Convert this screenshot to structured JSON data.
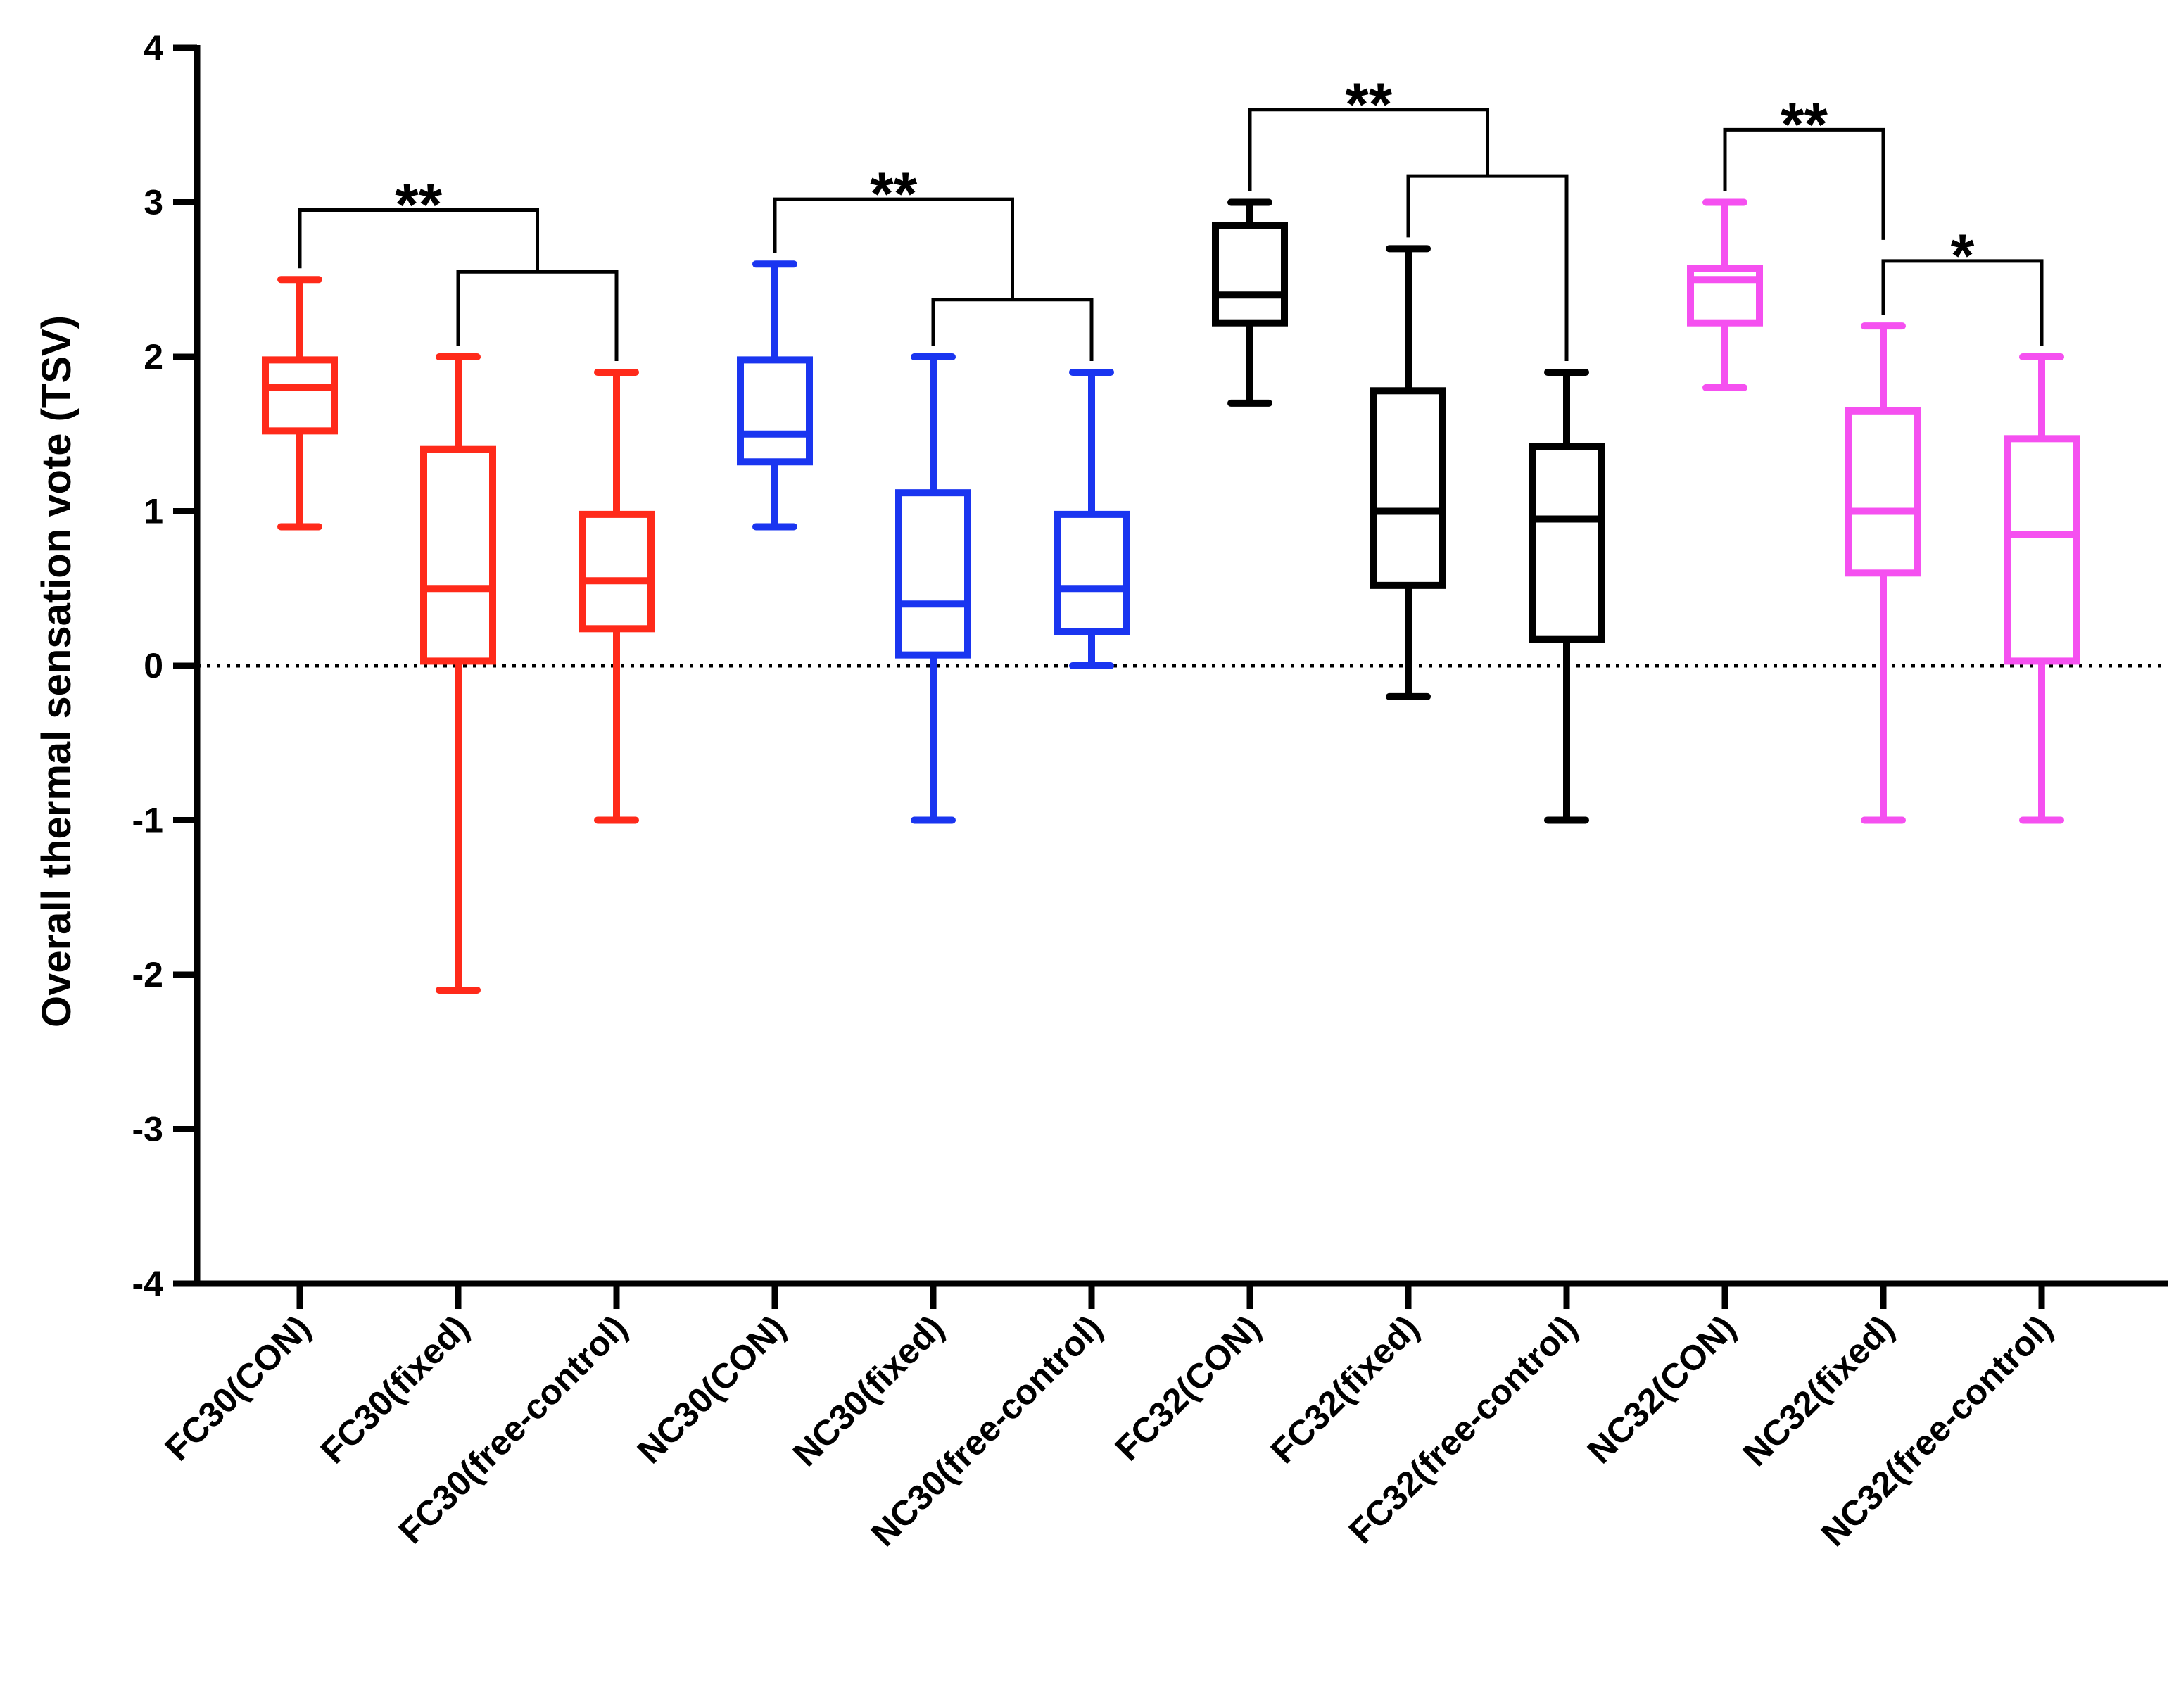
{
  "chart_data": {
    "type": "box",
    "ylabel": "Overall thermal sensation vote (TSV)",
    "xlabel": "",
    "ylim": [
      -4,
      4
    ],
    "yticks": [
      -4,
      -3,
      -2,
      -1,
      0,
      1,
      2,
      3,
      4
    ],
    "reference_line": {
      "y": 0,
      "style": "dotted"
    },
    "categories": [
      "FC30(CON)",
      "FC30(fixed)",
      "FC30(free-control)",
      "NC30(CON)",
      "NC30(fixed)",
      "NC30(free-control)",
      "FC32(CON)",
      "FC32(fixed)",
      "FC32(free-control)",
      "NC32(CON)",
      "NC32(fixed)",
      "NC32(free-control)"
    ],
    "boxes": [
      {
        "category": "FC30(CON)",
        "min": 0.9,
        "q1": 1.52,
        "median": 1.8,
        "q3": 1.98,
        "max": 2.5,
        "color": "#ff2a1a"
      },
      {
        "category": "FC30(fixed)",
        "min": -2.1,
        "q1": 0.03,
        "median": 0.5,
        "q3": 1.4,
        "max": 2.0,
        "color": "#ff2a1a"
      },
      {
        "category": "FC30(free-control)",
        "min": -1.0,
        "q1": 0.24,
        "median": 0.55,
        "q3": 0.98,
        "max": 1.9,
        "color": "#ff2a1a"
      },
      {
        "category": "NC30(CON)",
        "min": 0.9,
        "q1": 1.32,
        "median": 1.5,
        "q3": 1.98,
        "max": 2.6,
        "color": "#1a35f0"
      },
      {
        "category": "NC30(fixed)",
        "min": -1.0,
        "q1": 0.07,
        "median": 0.4,
        "q3": 1.12,
        "max": 2.0,
        "color": "#1a35f0"
      },
      {
        "category": "NC30(free-control)",
        "min": 0.0,
        "q1": 0.22,
        "median": 0.5,
        "q3": 0.98,
        "max": 1.9,
        "color": "#1a35f0"
      },
      {
        "category": "FC32(CON)",
        "min": 1.7,
        "q1": 2.22,
        "median": 2.4,
        "q3": 2.85,
        "max": 3.0,
        "color": "#000000"
      },
      {
        "category": "FC32(fixed)",
        "min": -0.2,
        "q1": 0.52,
        "median": 1.0,
        "q3": 1.78,
        "max": 2.7,
        "color": "#000000"
      },
      {
        "category": "FC32(free-control)",
        "min": -1.0,
        "q1": 0.17,
        "median": 0.95,
        "q3": 1.42,
        "max": 1.9,
        "color": "#000000"
      },
      {
        "category": "NC32(CON)",
        "min": 1.8,
        "q1": 2.22,
        "median": 2.5,
        "q3": 2.57,
        "max": 3.0,
        "color": "#f550f0"
      },
      {
        "category": "NC32(fixed)",
        "min": -1.0,
        "q1": 0.6,
        "median": 1.0,
        "q3": 1.65,
        "max": 2.2,
        "color": "#f550f0"
      },
      {
        "category": "NC32(free-control)",
        "min": -1.0,
        "q1": 0.03,
        "median": 0.85,
        "q3": 1.47,
        "max": 2.0,
        "color": "#f550f0"
      }
    ],
    "significance": [
      {
        "label": "**",
        "left": 0,
        "inner_left": 1,
        "inner_right": 2,
        "top_y": 2.95,
        "inner_y": 2.55
      },
      {
        "label": "**",
        "left": 3,
        "inner_left": 4,
        "inner_right": 5,
        "top_y": 3.02,
        "inner_y": 2.37
      },
      {
        "label": "**",
        "left": 6,
        "inner_left": 7,
        "inner_right": 8,
        "top_y": 3.6,
        "inner_y": 3.17
      },
      {
        "label": "**",
        "left": 9,
        "right": 10,
        "top_y": 3.47
      },
      {
        "label": "*",
        "left": 10,
        "right": 11,
        "top_y": 2.62
      }
    ]
  }
}
